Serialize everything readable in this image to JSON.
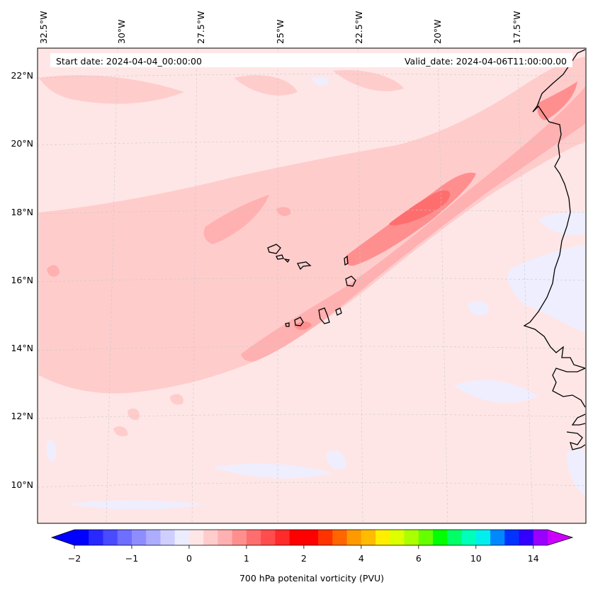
{
  "header": {
    "start_date": "Start date: 2024-04-04_00:00:00",
    "valid_date": "Valid_date: 2024-04-06T11:00:00.00"
  },
  "map": {
    "longitude_labels": [
      "32.5°W",
      "30°W",
      "27.5°W",
      "25°W",
      "22.5°W",
      "20°W",
      "17.5°W"
    ],
    "latitude_labels": [
      "22°N",
      "20°N",
      "18°N",
      "16°N",
      "14°N",
      "12°N",
      "10°N"
    ],
    "field": "700 hPa potential vorticity",
    "background_color": "#ffe6e6",
    "coast_color": "#000000"
  },
  "colorbar": {
    "tick_labels": [
      "−2",
      "−1",
      "0",
      "1",
      "2",
      "4",
      "6",
      "10",
      "14"
    ],
    "title": "700 hPa potenital vorticity (PVU)",
    "colors": [
      "#0000ff",
      "#2828ff",
      "#4a4aff",
      "#6e6eff",
      "#8d8dff",
      "#adadff",
      "#cfcfff",
      "#ececff",
      "#ffe6e6",
      "#ffcccc",
      "#ffb0b0",
      "#ff8f8f",
      "#ff6e6e",
      "#ff4d4d",
      "#ff2a2a",
      "#ff0000",
      "#ff0000",
      "#ff3300",
      "#ff6600",
      "#ff9900",
      "#ffbb00",
      "#ffee00",
      "#ddff00",
      "#aaff00",
      "#66ff00",
      "#00ff00",
      "#00ff66",
      "#00ffbb",
      "#00eeee",
      "#0088ff",
      "#0033ff",
      "#3300ff",
      "#9900ff"
    ],
    "extend_low_color": "#0000ff",
    "extend_high_color": "#cc00ff"
  }
}
